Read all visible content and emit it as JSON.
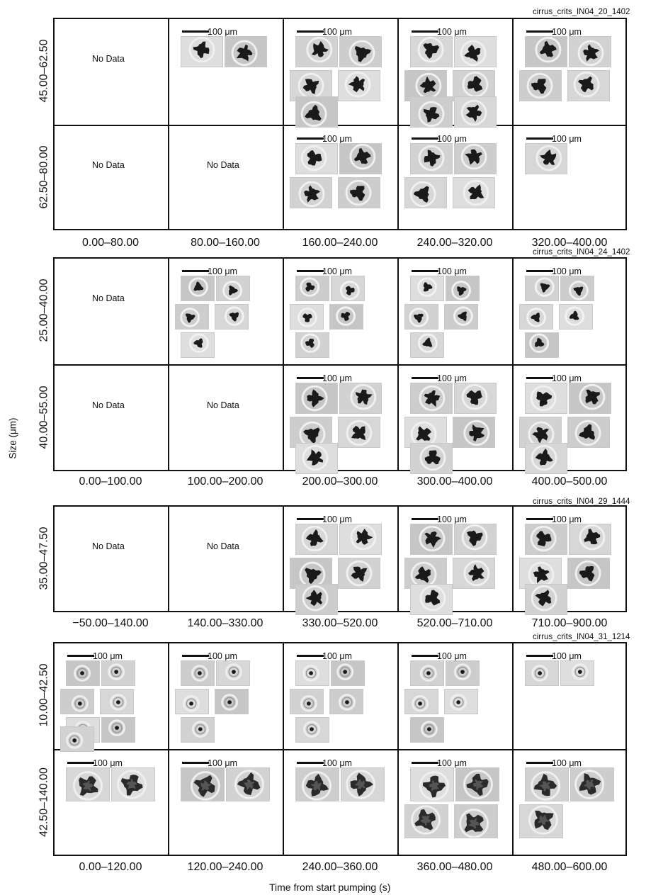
{
  "y_axis_label": "Size (μm)",
  "x_axis_label": "Time from start pumping (s)",
  "scale_label": "100 μm",
  "no_data_label": "No Data",
  "colors": {
    "frame": "#111111",
    "thumb_bg": "#d9d9d9",
    "particle": "#1a1a1a"
  },
  "panels": [
    {
      "name": "cirrus_crits_IN04_20_1402",
      "size_bins": [
        "45.00–62.50",
        "62.50–80.00"
      ],
      "time_bins": [
        "0.00–80.00",
        "80.00–160.00",
        "160.00–240.00",
        "240.00–320.00",
        "320.00–400.00"
      ],
      "cells": [
        [
          0,
          2,
          5,
          6,
          4
        ],
        [
          0,
          0,
          4,
          4,
          1
        ]
      ],
      "kinds": [
        [
          "",
          "agg",
          "agg",
          "agg",
          "agg"
        ],
        [
          "",
          "",
          "agg",
          "agg",
          "agg"
        ]
      ]
    },
    {
      "name": "cirrus_crits_IN04_24_1402",
      "size_bins": [
        "25.00–40.00",
        "40.00–55.00"
      ],
      "time_bins": [
        "0.00–100.00",
        "100.00–200.00",
        "200.00–300.00",
        "300.00–400.00",
        "400.00–500.00"
      ],
      "cells": [
        [
          0,
          5,
          5,
          5,
          5
        ],
        [
          0,
          0,
          5,
          5,
          5
        ]
      ],
      "kinds": [
        [
          "",
          "small",
          "small",
          "small",
          "small"
        ],
        [
          "",
          "",
          "agg",
          "agg",
          "agg"
        ]
      ]
    },
    {
      "name": "cirrus_crits_IN04_29_1444",
      "size_bins": [
        "35.00–47.50"
      ],
      "time_bins": [
        "−50.00–140.00",
        "140.00–330.00",
        "330.00–520.00",
        "520.00–710.00",
        "710.00–900.00"
      ],
      "cells": [
        [
          0,
          0,
          5,
          5,
          5
        ]
      ],
      "kinds": [
        [
          "",
          "",
          "agg",
          "agg",
          "agg"
        ]
      ]
    },
    {
      "name": "cirrus_crits_IN04_31_1214",
      "size_bins": [
        "10.00–42.50",
        "42.50–140.00"
      ],
      "time_bins": [
        "0.00–120.00",
        "120.00–240.00",
        "240.00–360.00",
        "360.00–480.00",
        "480.00–600.00"
      ],
      "cells": [
        [
          7,
          5,
          5,
          5,
          2
        ],
        [
          2,
          2,
          2,
          4,
          3
        ]
      ],
      "kinds": [
        [
          "drop",
          "drop",
          "drop",
          "drop",
          "drop"
        ],
        [
          "large",
          "large",
          "large",
          "large",
          "large"
        ]
      ]
    }
  ]
}
